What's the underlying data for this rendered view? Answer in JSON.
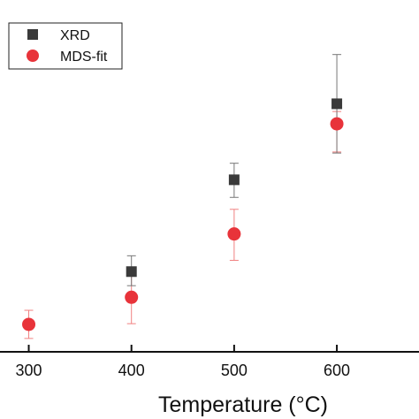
{
  "chart_data": {
    "type": "scatter",
    "title": "",
    "xlabel": "Temperature (°C)",
    "ylabel": "",
    "xlim": [
      272,
      680
    ],
    "ylim": [
      0,
      1
    ],
    "x_ticks": [
      300,
      400,
      500,
      600
    ],
    "x_tick_labels": [
      "300",
      "400",
      "500",
      "600"
    ],
    "grid": false,
    "legend_position": "top-left",
    "series": [
      {
        "name": "XRD",
        "marker": "square",
        "color": "#3a3a3a",
        "error_color": "#777777",
        "points": [
          {
            "x": 400,
            "y": 0.228,
            "err_low": 0.04,
            "err_high": 0.045
          },
          {
            "x": 500,
            "y": 0.489,
            "err_low": 0.05,
            "err_high": 0.047
          },
          {
            "x": 600,
            "y": 0.705,
            "err_low": 0.14,
            "err_high": 0.14
          }
        ]
      },
      {
        "name": "MDS-fit",
        "marker": "circle",
        "color": "#e8333a",
        "error_color": "#f08080",
        "points": [
          {
            "x": 300,
            "y": 0.078,
            "err_low": 0.04,
            "err_high": 0.04
          },
          {
            "x": 400,
            "y": 0.155,
            "err_low": 0.075,
            "err_high": 0.075
          },
          {
            "x": 500,
            "y": 0.335,
            "err_low": 0.075,
            "err_high": 0.07
          },
          {
            "x": 600,
            "y": 0.648,
            "err_low": 0.08,
            "err_high": 0.035
          }
        ]
      }
    ]
  }
}
